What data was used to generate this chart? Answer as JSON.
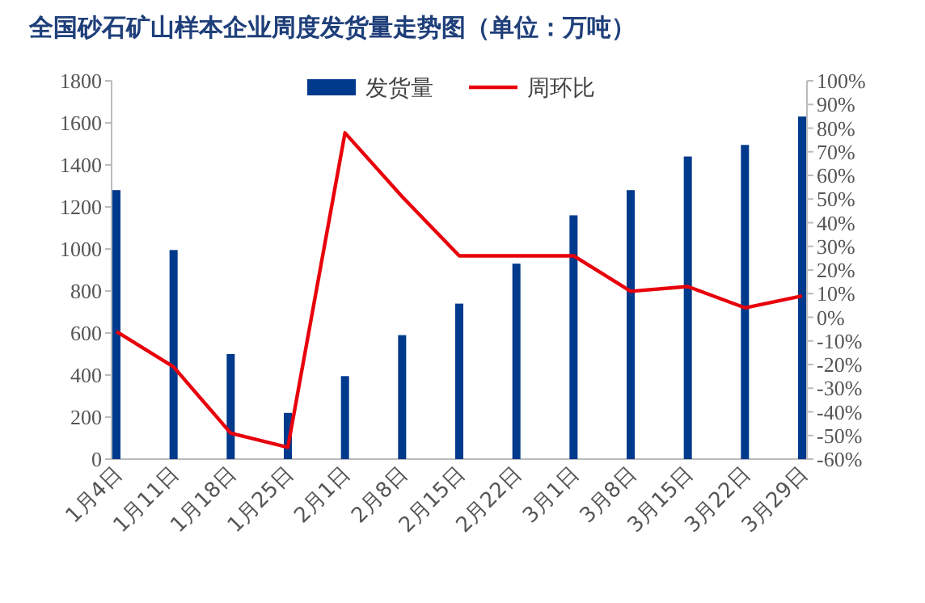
{
  "chart_data": {
    "type": "bar",
    "title": "全国砂石矿山样本企业周度发货量走势图（单位：万吨）",
    "categories": [
      "1月4日",
      "1月11日",
      "1月18日",
      "1月25日",
      "2月1日",
      "2月8日",
      "2月15日",
      "2月22日",
      "3月1日",
      "3月8日",
      "3月15日",
      "3月22日",
      "3月29日"
    ],
    "series": [
      {
        "name": "发货量",
        "color": "#003a8c",
        "values": [
          1280,
          995,
          500,
          220,
          395,
          590,
          740,
          930,
          1160,
          1280,
          1440,
          1495,
          1630
        ]
      },
      {
        "name": "周环比",
        "type": "line",
        "axis": "y2",
        "color": "#e8000b",
        "values": [
          -6,
          -21,
          -49,
          -55,
          78,
          51,
          26,
          26,
          26,
          11,
          13,
          4,
          9
        ]
      }
    ],
    "ylim": [
      0,
      1800
    ],
    "yticks": [
      0,
      200,
      400,
      600,
      800,
      1000,
      1200,
      1400,
      1600,
      1800
    ],
    "y2lim": [
      -60,
      100
    ],
    "y2ticks": [
      {
        "value": -60,
        "label": "-60%"
      },
      {
        "value": -50,
        "label": "-50%"
      },
      {
        "value": -40,
        "label": "-40%"
      },
      {
        "value": -30,
        "label": "-30%"
      },
      {
        "value": -20,
        "label": "-20%"
      },
      {
        "value": -10,
        "label": "-10%"
      },
      {
        "value": 0,
        "label": "0%"
      },
      {
        "value": 10,
        "label": "10%"
      },
      {
        "value": 20,
        "label": "20%"
      },
      {
        "value": 30,
        "label": "30%"
      },
      {
        "value": 40,
        "label": "40%"
      },
      {
        "value": 50,
        "label": "50%"
      },
      {
        "value": 60,
        "label": "60%"
      },
      {
        "value": 70,
        "label": "70%"
      },
      {
        "value": 80,
        "label": "80%"
      },
      {
        "value": 90,
        "label": "90%"
      },
      {
        "value": 100,
        "label": "100%"
      }
    ],
    "legend": "top",
    "grid": false
  }
}
